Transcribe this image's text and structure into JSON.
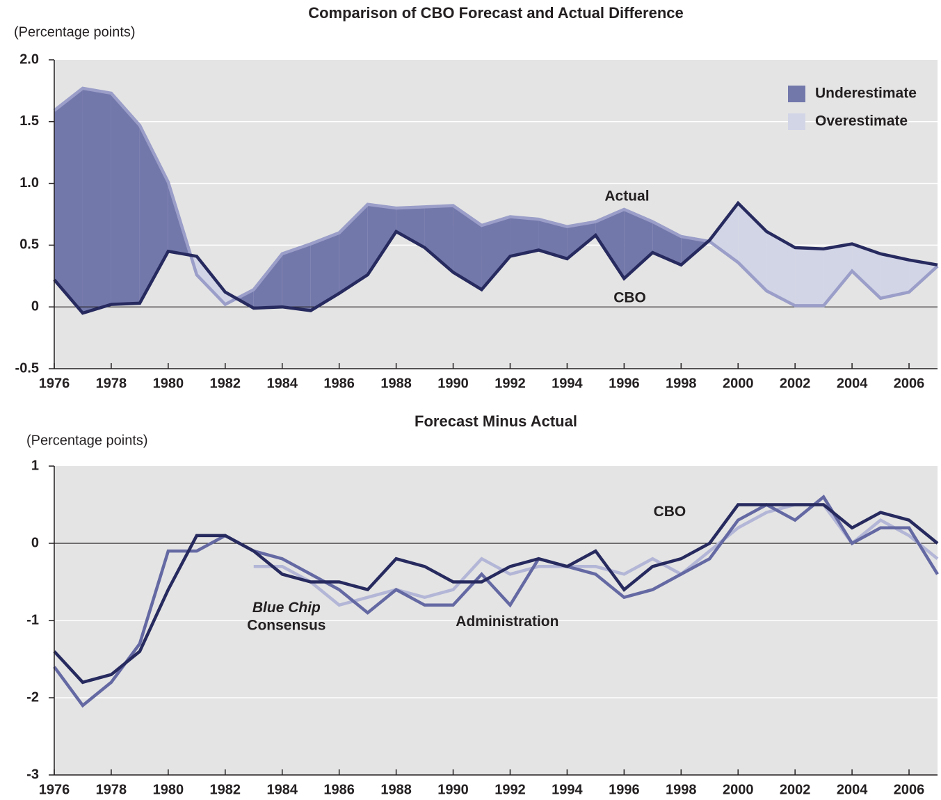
{
  "chart_data": [
    {
      "type": "line",
      "title": "Comparison of CBO Forecast and Actual Difference",
      "y_label": "(Percentage points)",
      "x": [
        1976,
        1977,
        1978,
        1979,
        1980,
        1981,
        1982,
        1983,
        1984,
        1985,
        1986,
        1987,
        1988,
        1989,
        1990,
        1991,
        1992,
        1993,
        1994,
        1995,
        1996,
        1997,
        1998,
        1999,
        2000,
        2001,
        2002,
        2003,
        2004,
        2005,
        2006,
        2007
      ],
      "series": [
        {
          "name": "Actual",
          "color": "#9a9ec8",
          "values": [
            1.59,
            1.77,
            1.73,
            1.47,
            1.01,
            0.26,
            0.02,
            0.14,
            0.43,
            0.51,
            0.6,
            0.83,
            0.8,
            0.81,
            0.82,
            0.66,
            0.73,
            0.71,
            0.65,
            0.69,
            0.79,
            0.69,
            0.57,
            0.53,
            0.36,
            0.13,
            0.01,
            0.01,
            0.29,
            0.07,
            0.12,
            0.33
          ]
        },
        {
          "name": "CBO",
          "color": "#262a5e",
          "values": [
            0.22,
            -0.05,
            0.02,
            0.03,
            0.45,
            0.41,
            0.12,
            -0.01,
            0,
            -0.03,
            0.11,
            0.26,
            0.61,
            0.48,
            0.28,
            0.14,
            0.41,
            0.46,
            0.39,
            0.58,
            0.23,
            0.44,
            0.34,
            0.54,
            0.84,
            0.61,
            0.48,
            0.47,
            0.51,
            0.43,
            0.38,
            0.34
          ]
        }
      ],
      "area": "difference",
      "legend": [
        {
          "name": "Underestimate",
          "color": "#7378ab"
        },
        {
          "name": "Overestimate",
          "color": "#d2d5e6"
        }
      ],
      "xlim": [
        1976,
        2007
      ],
      "xticks": [
        1976,
        1978,
        1980,
        1982,
        1984,
        1986,
        1988,
        1990,
        1992,
        1994,
        1996,
        1998,
        2000,
        2002,
        2004,
        2006
      ],
      "ylim": [
        -0.5,
        2
      ],
      "yticks": [
        -0.5,
        0,
        0.5,
        {
          "value": 1,
          "label": "1.0"
        },
        1.5,
        {
          "value": 2,
          "label": "2.0"
        }
      ],
      "grid": true
    },
    {
      "type": "line",
      "title": "Forecast Minus Actual",
      "y_label": "(Percentage points)",
      "x": [
        1976,
        1977,
        1978,
        1979,
        1980,
        1981,
        1982,
        1983,
        1984,
        1985,
        1986,
        1987,
        1988,
        1989,
        1990,
        1991,
        1992,
        1993,
        1994,
        1995,
        1996,
        1997,
        1998,
        1999,
        2000,
        2001,
        2002,
        2003,
        2004,
        2005,
        2006,
        2007
      ],
      "series": [
        {
          "color": "#b3b6d6",
          "values": [
            null,
            null,
            null,
            null,
            null,
            null,
            null,
            -0.3,
            -0.3,
            -0.5,
            -0.8,
            -0.7,
            -0.6,
            -0.7,
            -0.6,
            -0.2,
            -0.4,
            -0.3,
            -0.3,
            -0.3,
            -0.4,
            -0.2,
            -0.4,
            -0.1,
            0.2,
            0.4,
            0.5,
            0.5,
            0,
            0.3,
            0.1,
            -0.2
          ]
        },
        {
          "name": "Administration",
          "color": "#6469a3",
          "values": [
            -1.6,
            -2.1,
            -1.8,
            -1.3,
            -0.1,
            -0.1,
            0.1,
            -0.1,
            -0.2,
            -0.4,
            -0.6,
            -0.9,
            -0.6,
            -0.8,
            -0.8,
            -0.4,
            -0.8,
            -0.2,
            -0.3,
            -0.4,
            -0.7,
            -0.6,
            -0.4,
            -0.2,
            0.3,
            0.5,
            0.3,
            0.6,
            0,
            0.2,
            0.2,
            -0.4
          ]
        },
        {
          "name": "CBO",
          "color": "#262a5e",
          "values": [
            -1.4,
            -1.8,
            -1.7,
            -1.4,
            -0.6,
            0.1,
            0.1,
            -0.1,
            -0.4,
            -0.5,
            -0.5,
            -0.6,
            -0.2,
            -0.3,
            -0.5,
            -0.5,
            -0.3,
            -0.2,
            -0.3,
            -0.1,
            -0.6,
            -0.3,
            -0.2,
            0,
            0.5,
            0.5,
            0.5,
            0.5,
            0.2,
            0.4,
            0.3,
            0
          ]
        }
      ],
      "annotations": [
        {
          "text": "Blue Chip",
          "italic": true
        },
        {
          "text": "Consensus"
        }
      ],
      "xlim": [
        1976,
        2007
      ],
      "xticks": [
        1976,
        1978,
        1980,
        1982,
        1984,
        1986,
        1988,
        1990,
        1992,
        1994,
        1996,
        1998,
        2000,
        2002,
        2004,
        2006
      ],
      "ylim": [
        -3,
        1
      ],
      "yticks": [
        -3,
        -2,
        -1,
        0,
        1
      ],
      "grid": true
    }
  ]
}
